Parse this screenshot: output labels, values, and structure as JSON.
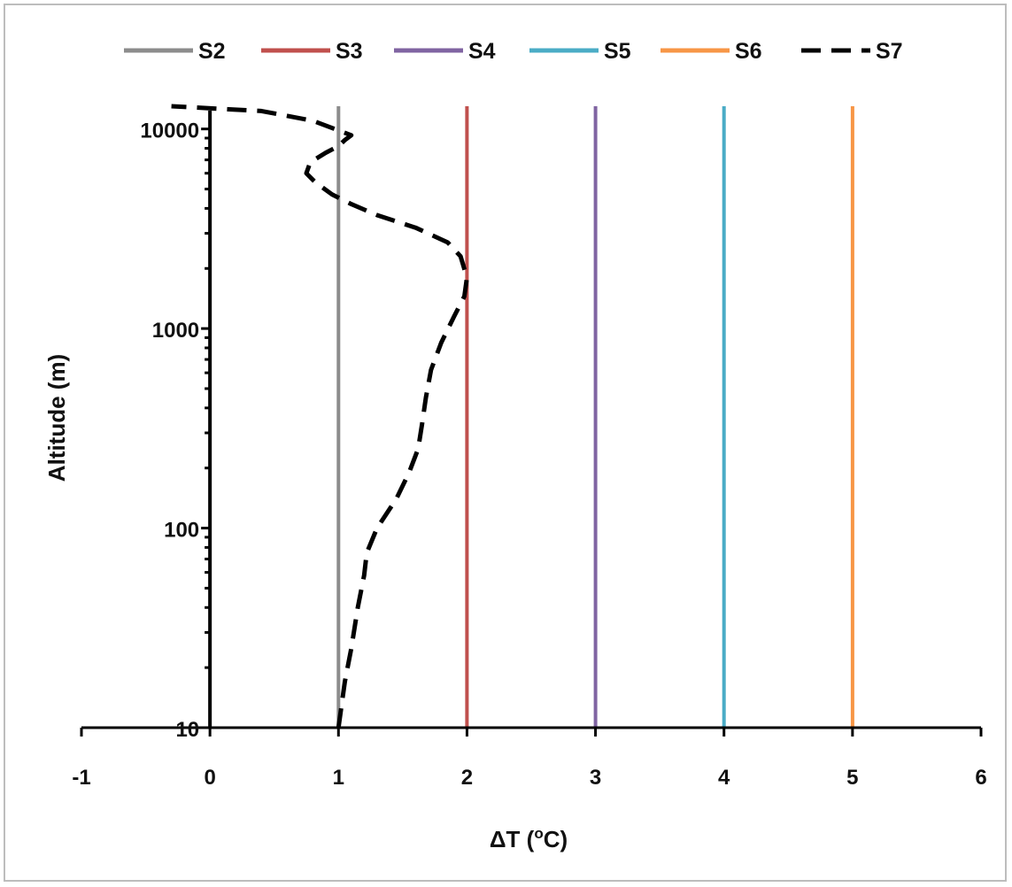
{
  "chart_data": {
    "type": "line",
    "title": "",
    "xlabel": "ΔT (",
    "xlabel_sup": "o",
    "xlabel_end": "C)",
    "ylabel": "Altitude (m)",
    "xlim": [
      -1,
      6
    ],
    "ylim": [
      10,
      13000
    ],
    "y_scale": "log",
    "x_ticks": [
      "-1",
      "0",
      "1",
      "2",
      "3",
      "4",
      "5",
      "6"
    ],
    "y_ticks": [
      {
        "label": "10",
        "value": 10
      },
      {
        "label": "100",
        "value": 100
      },
      {
        "label": "1000",
        "value": 1000
      },
      {
        "label": "10000",
        "value": 10000
      }
    ],
    "grid": false,
    "legend_position": "top",
    "reference_line": {
      "x": 0,
      "color": "#000000"
    },
    "series": [
      {
        "name": "S2",
        "color": "#8c8c8c",
        "dash": "solid",
        "x": [
          1,
          1
        ],
        "y": [
          10,
          13000
        ]
      },
      {
        "name": "S3",
        "color": "#c0504d",
        "dash": "solid",
        "x": [
          2,
          2
        ],
        "y": [
          10,
          13000
        ]
      },
      {
        "name": "S4",
        "color": "#8064a2",
        "dash": "solid",
        "x": [
          3,
          3
        ],
        "y": [
          10,
          13000
        ]
      },
      {
        "name": "S5",
        "color": "#4bacc6",
        "dash": "solid",
        "x": [
          4,
          4
        ],
        "y": [
          10,
          13000
        ]
      },
      {
        "name": "S6",
        "color": "#f79646",
        "dash": "solid",
        "x": [
          5,
          5
        ],
        "y": [
          10,
          13000
        ]
      },
      {
        "name": "S7",
        "color": "#000000",
        "dash": "dashed",
        "x": [
          1.0,
          1.05,
          1.1,
          1.15,
          1.2,
          1.22,
          1.3,
          1.45,
          1.55,
          1.62,
          1.65,
          1.68,
          1.72,
          1.8,
          1.9,
          1.98,
          2.0,
          1.95,
          1.85,
          1.6,
          1.3,
          1.1,
          0.95,
          0.82,
          0.75,
          0.78,
          0.9,
          1.0,
          1.05,
          1.1,
          0.8,
          0.4,
          -0.3
        ],
        "y": [
          10,
          17,
          25,
          40,
          58,
          75,
          100,
          140,
          190,
          250,
          330,
          450,
          620,
          850,
          1150,
          1450,
          1800,
          2300,
          2700,
          3200,
          3700,
          4200,
          4700,
          5400,
          6000,
          6800,
          7600,
          8200,
          8800,
          9300,
          11000,
          12300,
          13000
        ]
      }
    ]
  }
}
